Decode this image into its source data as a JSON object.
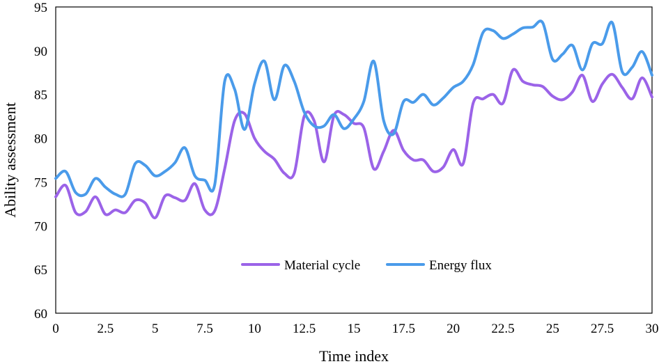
{
  "chart_data": {
    "type": "line",
    "title": "",
    "xlabel": "Time index",
    "ylabel": "Ability assessment",
    "xlim": [
      0,
      30
    ],
    "ylim": [
      60,
      95
    ],
    "xticks": [
      0,
      2.5,
      5,
      7.5,
      10,
      12.5,
      15,
      17.5,
      20,
      22.5,
      25,
      27.5,
      30
    ],
    "xtick_labels": [
      "0",
      "2.5",
      "5",
      "7.5",
      "10",
      "12.5",
      "15",
      "17.5",
      "20",
      "22.5",
      "25",
      "27.5",
      "30"
    ],
    "yticks": [
      60,
      65,
      70,
      75,
      80,
      85,
      90,
      95
    ],
    "ytick_labels": [
      "60",
      "65",
      "70",
      "75",
      "80",
      "85",
      "90",
      "95"
    ],
    "grid": false,
    "legend_position": "lower-center",
    "series": [
      {
        "name": "Material cycle",
        "color": "#9B63E8",
        "x": [
          0,
          0.5,
          1,
          1.5,
          2,
          2.5,
          3,
          3.5,
          4,
          4.5,
          5,
          5.5,
          6,
          6.5,
          7,
          7.5,
          8,
          8.5,
          9,
          9.5,
          10,
          10.5,
          11,
          11.5,
          12,
          12.5,
          13,
          13.5,
          14,
          14.5,
          15,
          15.5,
          16,
          16.5,
          17,
          17.5,
          18,
          18.5,
          19,
          19.5,
          20,
          20.5,
          21,
          21.5,
          22,
          22.5,
          23,
          23.5,
          24,
          24.5,
          25,
          25.5,
          26,
          26.5,
          27,
          27.5,
          28,
          28.5,
          29,
          29.5,
          30
        ],
        "values": [
          73.3,
          74.6,
          71.5,
          71.6,
          73.3,
          71.3,
          71.8,
          71.5,
          72.9,
          72.6,
          70.9,
          73.4,
          73.2,
          72.9,
          74.8,
          71.8,
          71.7,
          76.5,
          82.0,
          82.8,
          80.0,
          78.5,
          77.6,
          76.0,
          76.0,
          82.5,
          82.0,
          77.3,
          82.6,
          82.7,
          81.7,
          81.2,
          76.5,
          78.5,
          80.9,
          78.6,
          77.5,
          77.5,
          76.2,
          76.7,
          78.7,
          77.1,
          84.0,
          84.5,
          85.0,
          84.0,
          87.8,
          86.5,
          86.1,
          85.9,
          84.8,
          84.4,
          85.3,
          87.2,
          84.2,
          86.2,
          87.3,
          85.8,
          84.5,
          86.9,
          84.7
        ]
      },
      {
        "name": "Energy flux",
        "color": "#4A9BEA",
        "x": [
          0,
          0.5,
          1,
          1.5,
          2,
          2.5,
          3,
          3.5,
          4,
          4.5,
          5,
          5.5,
          6,
          6.5,
          7,
          7.5,
          8,
          8.5,
          9,
          9.5,
          10,
          10.5,
          11,
          11.5,
          12,
          12.5,
          13,
          13.5,
          14,
          14.5,
          15,
          15.5,
          16,
          16.5,
          17,
          17.5,
          18,
          18.5,
          19,
          19.5,
          20,
          20.5,
          21,
          21.5,
          22,
          22.5,
          23,
          23.5,
          24,
          24.5,
          25,
          25.5,
          26,
          26.5,
          27,
          27.5,
          28,
          28.5,
          29,
          29.5,
          30
        ],
        "values": [
          75.4,
          76.2,
          73.8,
          73.6,
          75.4,
          74.4,
          73.6,
          73.6,
          77.1,
          76.9,
          75.7,
          76.2,
          77.2,
          78.9,
          75.7,
          75.2,
          74.7,
          86.5,
          85.6,
          81.0,
          86.2,
          88.8,
          84.4,
          88.3,
          86.5,
          83.0,
          81.4,
          81.4,
          82.7,
          81.1,
          82.2,
          84.2,
          88.8,
          82.0,
          80.5,
          84.2,
          84.1,
          85.0,
          83.8,
          84.6,
          85.8,
          86.5,
          88.4,
          92.1,
          92.3,
          91.4,
          91.9,
          92.6,
          92.7,
          93.2,
          89.0,
          89.6,
          90.6,
          87.8,
          90.8,
          90.8,
          93.2,
          87.6,
          88.1,
          89.9,
          87.2
        ]
      }
    ]
  }
}
